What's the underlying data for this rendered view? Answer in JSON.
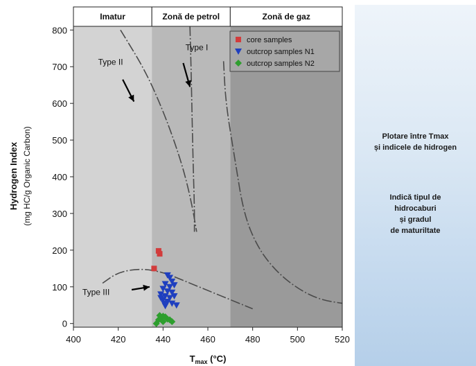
{
  "chart_data": {
    "type": "scatter",
    "xlabel_main": "T",
    "xlabel_sub": "max",
    "xlabel_unit": " (°C)",
    "ylabel": "Hydrogen Index",
    "ylabel2": "(mg HC/g Organic Carbon)",
    "xlim": [
      400,
      520
    ],
    "ylim": [
      -10,
      810
    ],
    "x_ticks": [
      400,
      420,
      440,
      460,
      480,
      500,
      520
    ],
    "y_ticks": [
      0,
      100,
      200,
      300,
      400,
      500,
      600,
      700,
      800
    ],
    "zones": [
      {
        "label": "Imatur",
        "x0": 400,
        "x1": 435,
        "color": "#d3d3d3"
      },
      {
        "label": "Zonă de petrol",
        "x0": 435,
        "x1": 470,
        "color": "#b9b9b9"
      },
      {
        "label": "Zonă de gaz",
        "x0": 470,
        "x1": 520,
        "color": "#9a9a9a"
      }
    ],
    "curves": [
      {
        "label": "Type I",
        "points": [
          [
            452,
            810
          ],
          [
            452.5,
            700
          ],
          [
            453,
            550
          ],
          [
            453.5,
            420
          ],
          [
            454,
            320
          ],
          [
            454,
            250
          ]
        ]
      },
      {
        "label": "Type II",
        "points": [
          [
            421,
            800
          ],
          [
            432,
            690
          ],
          [
            440,
            580
          ],
          [
            446,
            480
          ],
          [
            450,
            400
          ],
          [
            453,
            320
          ],
          [
            455,
            250
          ]
        ]
      },
      {
        "label": "Type III",
        "points": [
          [
            413,
            110
          ],
          [
            420,
            140
          ],
          [
            430,
            150
          ],
          [
            440,
            140
          ],
          [
            450,
            115
          ],
          [
            460,
            90
          ],
          [
            470,
            65
          ],
          [
            480,
            40
          ]
        ]
      },
      {
        "label": "",
        "points": [
          [
            467,
            715
          ],
          [
            468,
            600
          ],
          [
            472,
            450
          ],
          [
            476,
            300
          ],
          [
            482,
            210
          ],
          [
            490,
            145
          ],
          [
            500,
            95
          ],
          [
            510,
            65
          ],
          [
            520,
            55
          ]
        ]
      }
    ],
    "curve_labels": [
      {
        "text": "Type I",
        "x": 450,
        "y": 745
      },
      {
        "text": "Type II",
        "x": 411,
        "y": 705
      },
      {
        "text": "Type III",
        "x": 404,
        "y": 78
      }
    ],
    "arrows": [
      {
        "from": [
          449,
          710
        ],
        "to": [
          452,
          645
        ]
      },
      {
        "from": [
          422,
          665
        ],
        "to": [
          427,
          605
        ]
      },
      {
        "from": [
          426,
          92
        ],
        "to": [
          434,
          100
        ]
      }
    ],
    "legend_position": "top-right",
    "series": [
      {
        "name": "core samples",
        "marker": "square",
        "color": "#d23c3c",
        "points": [
          [
            438,
            198
          ],
          [
            438.5,
            190
          ],
          [
            436,
            150
          ]
        ]
      },
      {
        "name": "outcrop samples N1",
        "marker": "triangle-down",
        "color": "#1f3fbf",
        "points": [
          [
            442,
            132
          ],
          [
            443,
            125
          ],
          [
            444,
            115
          ],
          [
            441,
            108
          ],
          [
            443,
            100
          ],
          [
            445,
            105
          ],
          [
            440,
            95
          ],
          [
            442,
            88
          ],
          [
            444,
            85
          ],
          [
            439,
            80
          ],
          [
            441,
            75
          ],
          [
            443,
            70
          ],
          [
            445,
            75
          ],
          [
            440,
            65
          ],
          [
            442,
            60
          ],
          [
            444,
            55
          ],
          [
            446,
            50
          ],
          [
            441,
            48
          ],
          [
            439,
            70
          ],
          [
            440.5,
            55
          ]
        ]
      },
      {
        "name": "outcrop samples N2",
        "marker": "diamond",
        "color": "#2e9e2e",
        "points": [
          [
            437,
            0
          ],
          [
            438,
            10
          ],
          [
            439,
            15
          ],
          [
            440,
            20
          ],
          [
            441,
            18
          ],
          [
            442,
            12
          ],
          [
            443,
            10
          ],
          [
            444,
            5
          ],
          [
            440,
            5
          ],
          [
            438.5,
            22
          ]
        ]
      }
    ]
  },
  "side_panel": {
    "title": "Plotare între Tmax\nși indicele de hidrogen",
    "description": "Indică tipul de\nhidrocaburi\nși gradul\nde maturiltate"
  }
}
